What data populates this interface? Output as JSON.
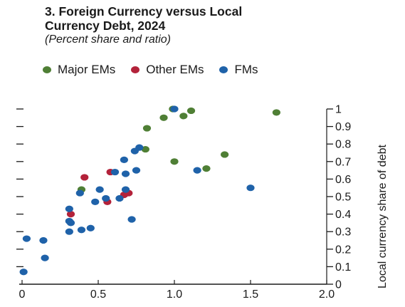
{
  "title": "3. Foreign Currency versus Local\nCurrency Debt, 2024",
  "subtitle": "(Percent share and ratio)",
  "legend": {
    "major": "Major EMs",
    "other": "Other EMs",
    "fms": "FMs"
  },
  "colors": {
    "major": "#4f7f35",
    "other": "#b3223a",
    "fms": "#1f62a9",
    "axis": "#1a1a1a"
  },
  "chart_data": {
    "type": "scatter",
    "title": "3. Foreign Currency versus Local Currency Debt, 2024",
    "subtitle": "(Percent share and ratio)",
    "xlabel": "",
    "ylabel": "Local currency share of debt",
    "xlim": [
      0,
      2.0
    ],
    "ylim": [
      0,
      1
    ],
    "x_ticks": [
      "0",
      "0.5",
      "1.0",
      "1.5",
      "2.0"
    ],
    "x_tick_values": [
      0,
      0.5,
      1.0,
      1.5,
      2.0
    ],
    "y_ticks": [
      "0",
      "0.1",
      "0.2",
      "0.3",
      "0.4",
      "0.5",
      "0.6",
      "0.7",
      "0.8",
      "0.9",
      "1"
    ],
    "y_tick_values": [
      0,
      0.1,
      0.2,
      0.3,
      0.4,
      0.5,
      0.6,
      0.7,
      0.8,
      0.9,
      1.0
    ],
    "y_axis_side": "right",
    "legend_position": "top",
    "grid": false,
    "series": [
      {
        "name": "Major EMs",
        "key": "major",
        "points": [
          [
            0.99,
            1.0
          ],
          [
            1.06,
            0.96
          ],
          [
            1.11,
            0.99
          ],
          [
            1.67,
            0.98
          ],
          [
            0.93,
            0.95
          ],
          [
            0.82,
            0.89
          ],
          [
            0.81,
            0.77
          ],
          [
            1.0,
            0.7
          ],
          [
            1.33,
            0.74
          ],
          [
            1.21,
            0.66
          ],
          [
            0.39,
            0.54
          ]
        ]
      },
      {
        "name": "Other EMs",
        "key": "other",
        "points": [
          [
            0.41,
            0.61
          ],
          [
            0.58,
            0.64
          ],
          [
            0.7,
            0.52
          ],
          [
            0.67,
            0.51
          ],
          [
            0.56,
            0.47
          ],
          [
            0.32,
            0.4
          ]
        ]
      },
      {
        "name": "FMs",
        "key": "fms",
        "points": [
          [
            1.0,
            1.0
          ],
          [
            0.77,
            0.78
          ],
          [
            0.74,
            0.76
          ],
          [
            0.67,
            0.71
          ],
          [
            0.61,
            0.64
          ],
          [
            0.68,
            0.63
          ],
          [
            0.75,
            0.65
          ],
          [
            1.15,
            0.65
          ],
          [
            1.5,
            0.55
          ],
          [
            0.51,
            0.54
          ],
          [
            0.68,
            0.54
          ],
          [
            0.38,
            0.52
          ],
          [
            0.64,
            0.49
          ],
          [
            0.55,
            0.49
          ],
          [
            0.48,
            0.47
          ],
          [
            0.31,
            0.43
          ],
          [
            0.31,
            0.36
          ],
          [
            0.32,
            0.35
          ],
          [
            0.45,
            0.32
          ],
          [
            0.39,
            0.31
          ],
          [
            0.31,
            0.3
          ],
          [
            0.72,
            0.37
          ],
          [
            0.03,
            0.26
          ],
          [
            0.14,
            0.25
          ],
          [
            0.15,
            0.15
          ],
          [
            0.01,
            0.07
          ]
        ]
      }
    ]
  }
}
